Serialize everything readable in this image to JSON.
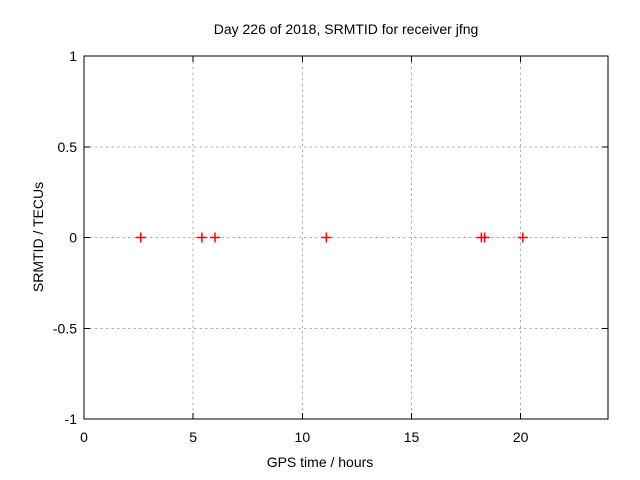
{
  "chart_data": {
    "type": "scatter",
    "title": "Day 226 of 2018, SRMTID for receiver jfng",
    "xlabel": "GPS time / hours",
    "ylabel": "SRMTID / TECUs",
    "xlim": [
      0,
      24
    ],
    "ylim": [
      -1,
      1
    ],
    "xticks": [
      0,
      5,
      10,
      15,
      20
    ],
    "yticks": [
      -1,
      -0.5,
      0,
      0.5,
      1
    ],
    "grid": true,
    "legend": false,
    "series": [
      {
        "name": "SRMTID",
        "marker": "plus",
        "color": "#ff0000",
        "points": [
          {
            "x": 2.6,
            "y": 0
          },
          {
            "x": 5.4,
            "y": 0
          },
          {
            "x": 6.0,
            "y": 0
          },
          {
            "x": 11.1,
            "y": 0
          },
          {
            "x": 18.2,
            "y": 0
          },
          {
            "x": 18.35,
            "y": 0
          },
          {
            "x": 20.1,
            "y": 0
          }
        ]
      }
    ],
    "colors": {
      "background": "#ffffff",
      "axis": "#000000",
      "grid": "#b0b0b0",
      "text": "#000000",
      "marker": "#ff0000"
    }
  }
}
